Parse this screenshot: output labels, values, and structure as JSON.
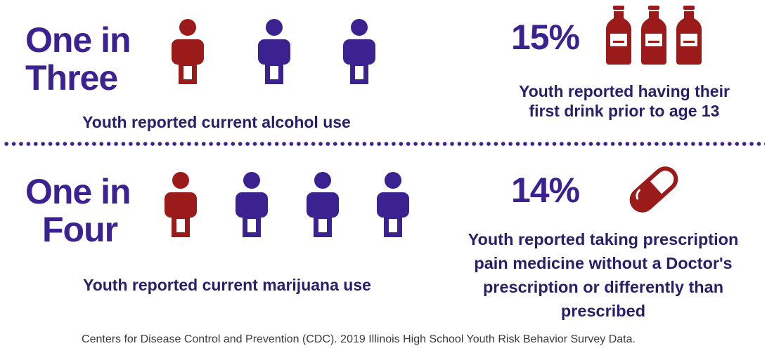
{
  "alcohol": {
    "ratio_line1": "One in",
    "ratio_line2": "Three",
    "caption": "Youth reported current alcohol use",
    "people": [
      {
        "icon": "person-icon",
        "color": "#9b1b1b",
        "highlighted": true
      },
      {
        "icon": "person-icon",
        "color": "#3b2290",
        "highlighted": false
      },
      {
        "icon": "person-icon",
        "color": "#3b2290",
        "highlighted": false
      }
    ]
  },
  "first_drink": {
    "percent": "15%",
    "caption_line1": "Youth reported having their",
    "caption_line2": "first drink prior to age 13",
    "icon": "bottle-icon",
    "icon_count": 3,
    "color": "#9b1b1b"
  },
  "marijuana": {
    "ratio_line1": "One in",
    "ratio_line2": "Four",
    "caption": "Youth reported current marijuana use",
    "people": [
      {
        "icon": "person-icon",
        "color": "#9b1b1b",
        "highlighted": true
      },
      {
        "icon": "person-icon",
        "color": "#3b2290",
        "highlighted": false
      },
      {
        "icon": "person-icon",
        "color": "#3b2290",
        "highlighted": false
      },
      {
        "icon": "person-icon",
        "color": "#3b2290",
        "highlighted": false
      }
    ]
  },
  "prescription": {
    "percent": "14%",
    "caption_line1": "Youth reported taking prescription",
    "caption_line2": "pain medicine without a Doctor's",
    "caption_line3": "prescription or differently than",
    "caption_line4": "prescribed",
    "icon": "pill-capsule-icon",
    "color": "#9b1b1b"
  },
  "source": "Centers for Disease Control and Prevention (CDC). 2019 Illinois High School Youth Risk Behavior Survey Data.",
  "colors": {
    "accent_purple": "#3b2290",
    "accent_red": "#9b1b1b",
    "caption_navy": "#27206a"
  }
}
